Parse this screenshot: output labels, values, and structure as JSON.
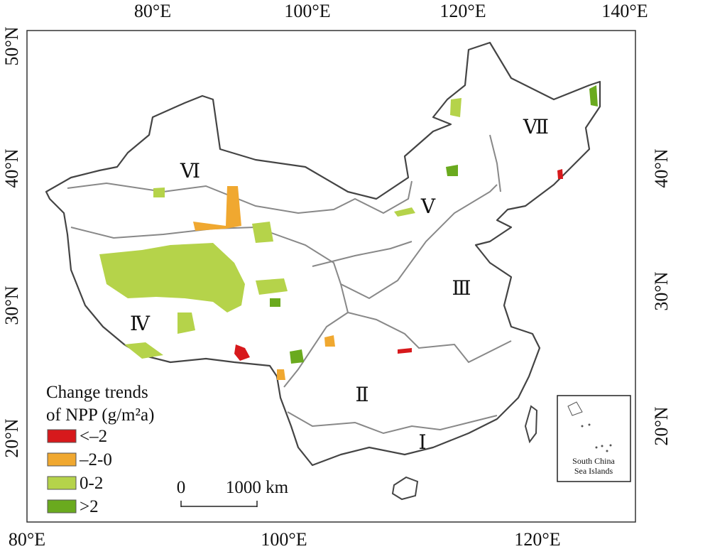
{
  "map": {
    "top_ticks": [
      "80°E",
      "100°E",
      "120°E",
      "140°E"
    ],
    "bottom_ticks": [
      "80°E",
      "100°E",
      "120°E"
    ],
    "left_ticks": [
      "50°N",
      "40°N",
      "30°N",
      "20°N"
    ],
    "right_ticks": [
      "40°N",
      "30°N",
      "20°N"
    ],
    "regions": [
      "Ⅰ",
      "Ⅱ",
      "Ⅲ",
      "Ⅳ",
      "Ⅴ",
      "Ⅵ",
      "Ⅶ"
    ],
    "legend": {
      "title": [
        "Change trends",
        "of NPP (g/m²a)"
      ],
      "items": [
        {
          "label": "<–2",
          "color": "#d7191c"
        },
        {
          "label": "–2-0",
          "color": "#f0a830"
        },
        {
          "label": "0-2",
          "color": "#b5d34a"
        },
        {
          "label": ">2",
          "color": "#6aaa1e"
        }
      ]
    },
    "scale_bar": {
      "labels": [
        "0",
        "1000 km"
      ]
    },
    "inset": {
      "label": [
        "South China",
        "Sea Islands"
      ]
    }
  }
}
